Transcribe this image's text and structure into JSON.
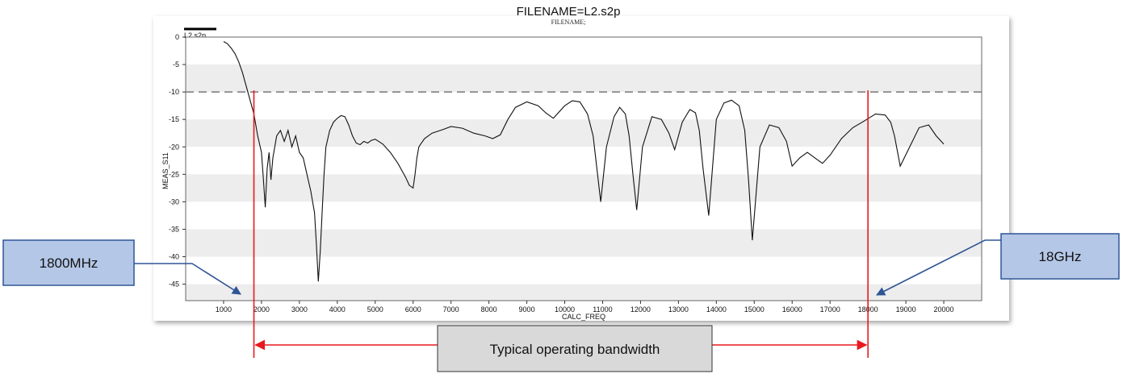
{
  "chart_data": {
    "type": "line",
    "title": "FILENAME=L2.s2p",
    "subtitle": "FILENAME;",
    "xlabel": "CALC_FREQ",
    "ylabel": "MEAS_S11",
    "legend": {
      "label": "L2.s2p",
      "placement": "top-left"
    },
    "xlim": [
      0,
      21000
    ],
    "ylim": [
      -48,
      0
    ],
    "xticks": [
      1000,
      2000,
      3000,
      4000,
      5000,
      6000,
      7000,
      8000,
      9000,
      10000,
      11000,
      12000,
      13000,
      14000,
      15000,
      16000,
      17000,
      18000,
      19000,
      20000
    ],
    "yticks": [
      0,
      -5,
      -10,
      -15,
      -20,
      -25,
      -30,
      -35,
      -40,
      -45
    ],
    "grid": "horizontal-bands",
    "reference_line": {
      "y": -10,
      "style": "dashed"
    },
    "series": [
      {
        "color": "#111111",
        "x": [
          1000,
          1100,
          1200,
          1300,
          1400,
          1500,
          1600,
          1700,
          1800,
          1900,
          2000,
          2050,
          2100,
          2150,
          2200,
          2250,
          2300,
          2400,
          2500,
          2600,
          2700,
          2800,
          2900,
          3000,
          3100,
          3200,
          3300,
          3400,
          3450,
          3500,
          3550,
          3600,
          3650,
          3700,
          3800,
          3900,
          4000,
          4100,
          4200,
          4300,
          4400,
          4500,
          4600,
          4700,
          4800,
          4900,
          5000,
          5200,
          5400,
          5600,
          5800,
          5900,
          6000,
          6050,
          6100,
          6150,
          6200,
          6300,
          6500,
          6800,
          7000,
          7300,
          7600,
          7900,
          8100,
          8300,
          8500,
          8700,
          9000,
          9300,
          9500,
          9700,
          10000,
          10200,
          10400,
          10600,
          10750,
          10850,
          10950,
          11100,
          11300,
          11450,
          11600,
          11700,
          11800,
          11900,
          12050,
          12300,
          12550,
          12750,
          12900,
          13100,
          13300,
          13450,
          13550,
          13650,
          13800,
          14000,
          14200,
          14400,
          14600,
          14750,
          14850,
          14950,
          15150,
          15400,
          15650,
          15850,
          16000,
          16200,
          16400,
          16600,
          16800,
          17000,
          17300,
          17600,
          17900,
          18200,
          18450,
          18600,
          18700,
          18850,
          19100,
          19350,
          19600,
          19800,
          20000
        ],
        "y": [
          -0.8,
          -1.2,
          -2.0,
          -3.0,
          -4.5,
          -6.5,
          -9.0,
          -11.5,
          -14.0,
          -18.0,
          -21.0,
          -26.0,
          -31.0,
          -24.0,
          -21.0,
          -26.0,
          -22.0,
          -18.0,
          -17.0,
          -19.0,
          -17.0,
          -20.0,
          -18.0,
          -21.0,
          -22.0,
          -25.0,
          -28.0,
          -32.0,
          -38.0,
          -44.5,
          -39.0,
          -32.0,
          -25.0,
          -20.0,
          -17.0,
          -15.5,
          -14.8,
          -14.3,
          -14.5,
          -16.0,
          -18.0,
          -19.3,
          -19.6,
          -19.0,
          -19.3,
          -18.8,
          -18.6,
          -19.5,
          -21.0,
          -23.0,
          -25.5,
          -27.0,
          -27.5,
          -25.0,
          -22.0,
          -20.0,
          -19.5,
          -18.5,
          -17.5,
          -16.8,
          -16.3,
          -16.6,
          -17.5,
          -18.0,
          -18.5,
          -17.8,
          -15.0,
          -12.8,
          -11.8,
          -12.5,
          -13.8,
          -14.8,
          -12.5,
          -11.6,
          -11.8,
          -14.0,
          -18.0,
          -24.0,
          -30.0,
          -20.0,
          -14.5,
          -12.8,
          -14.0,
          -18.0,
          -25.0,
          -31.5,
          -20.0,
          -14.5,
          -15.0,
          -17.5,
          -20.5,
          -15.5,
          -13.2,
          -13.8,
          -17.0,
          -24.0,
          -32.5,
          -15.0,
          -12.0,
          -11.5,
          -12.5,
          -17.0,
          -26.0,
          -37.0,
          -20.0,
          -16.0,
          -16.5,
          -19.0,
          -23.5,
          -22.0,
          -21.0,
          -22.0,
          -23.0,
          -21.5,
          -18.5,
          -16.5,
          -15.3,
          -14.0,
          -14.2,
          -15.5,
          -18.0,
          -23.5,
          -20.0,
          -16.5,
          -16.0,
          -18.0,
          -19.5
        ]
      }
    ],
    "annotations": {
      "left_marker": {
        "x": 1800,
        "label": "1800MHz"
      },
      "right_marker": {
        "x": 18000,
        "label": "18GHz"
      },
      "band_label": "Typical operating bandwidth"
    }
  }
}
